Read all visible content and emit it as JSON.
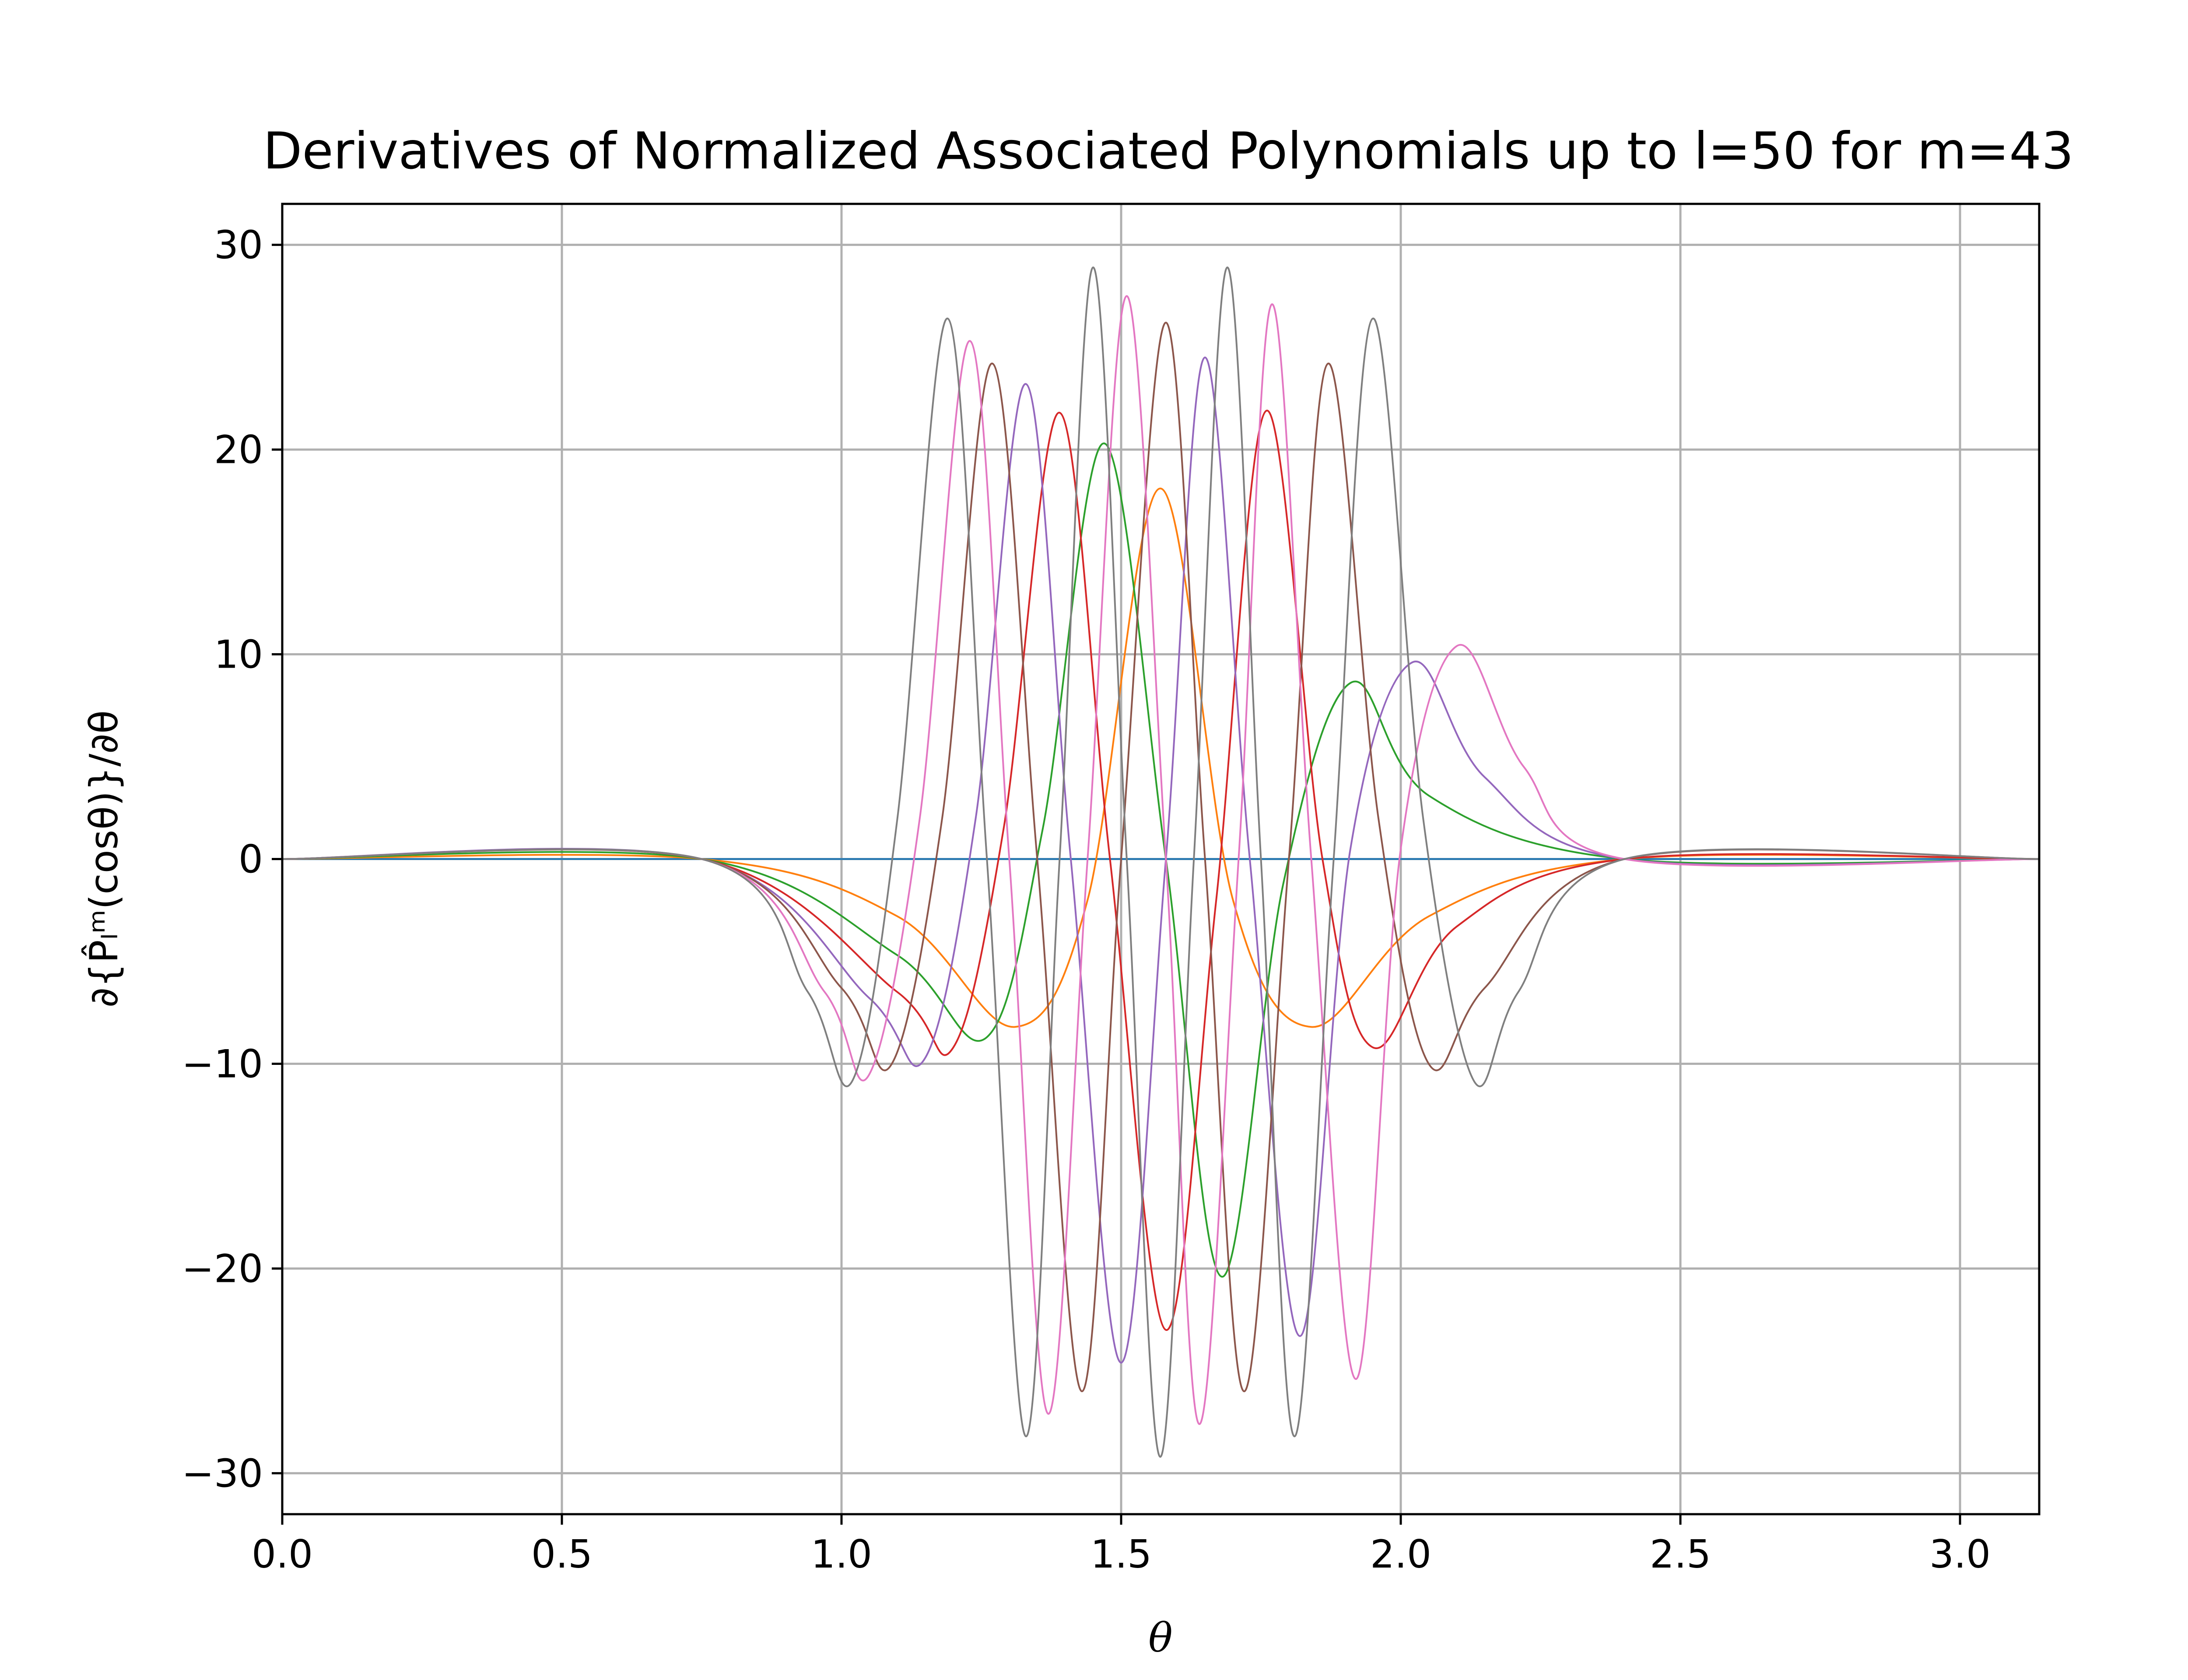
{
  "chart_data": {
    "type": "line",
    "title": "Derivatives of Normalized Associated Polynomials up to l=50 for m=43",
    "xlabel": "θ",
    "ylabel": "∂{P̂ₗᵐ(cosθ)}/∂θ",
    "xlim": [
      0,
      3.1416
    ],
    "ylim": [
      -32,
      32
    ],
    "xticks": [
      "0.0",
      "0.5",
      "1.0",
      "1.5",
      "2.0",
      "2.5",
      "3.0"
    ],
    "yticks": [
      "−30",
      "−20",
      "−10",
      "0",
      "10",
      "20",
      "30"
    ],
    "grid": true,
    "legend": "none",
    "series": [
      {
        "color": "#1f77b4",
        "l": 43,
        "points": [
          [
            0,
            0
          ],
          [
            3.1416,
            0
          ]
        ]
      },
      {
        "color": "#ff7f0e",
        "l": 44,
        "points": [
          [
            0.75,
            0
          ],
          [
            1.1,
            -2.8
          ],
          [
            1.31,
            -8.2
          ],
          [
            1.44,
            -2.0
          ],
          [
            1.57,
            18.1
          ],
          [
            1.7,
            -2.0
          ],
          [
            1.84,
            -8.2
          ],
          [
            2.05,
            -2.8
          ],
          [
            2.4,
            0
          ]
        ]
      },
      {
        "color": "#2ca02c",
        "l": 45,
        "points": [
          [
            0.75,
            0
          ],
          [
            1.1,
            -4.7
          ],
          [
            1.26,
            -8.7
          ],
          [
            1.36,
            1.5
          ],
          [
            1.47,
            20.3
          ],
          [
            1.58,
            0.0
          ],
          [
            1.68,
            -20.4
          ],
          [
            1.79,
            -1.2
          ],
          [
            1.91,
            8.6
          ],
          [
            2.05,
            3.1
          ],
          [
            2.4,
            0
          ]
        ]
      },
      {
        "color": "#d62728",
        "l": 46,
        "points": [
          [
            0.75,
            0
          ],
          [
            1.1,
            -6.5
          ],
          [
            1.2,
            -9.2
          ],
          [
            1.29,
            1.5
          ],
          [
            1.39,
            21.8
          ],
          [
            1.48,
            0.0
          ],
          [
            1.58,
            -23.0
          ],
          [
            1.67,
            -2.0
          ],
          [
            1.76,
            21.9
          ],
          [
            1.86,
            0.0
          ],
          [
            1.95,
            -9.2
          ],
          [
            2.1,
            -3.3
          ],
          [
            2.4,
            0
          ]
        ]
      },
      {
        "color": "#9467bd",
        "l": 47,
        "points": [
          [
            0.75,
            0
          ],
          [
            1.05,
            -6.8
          ],
          [
            1.15,
            -9.7
          ],
          [
            1.24,
            2.0
          ],
          [
            1.33,
            23.2
          ],
          [
            1.41,
            0.0
          ],
          [
            1.5,
            -24.6
          ],
          [
            1.58,
            0.0
          ],
          [
            1.65,
            24.5
          ],
          [
            1.73,
            0.0
          ],
          [
            1.82,
            -23.3
          ],
          [
            1.91,
            0.5
          ],
          [
            2.02,
            9.6
          ],
          [
            2.15,
            4.0
          ],
          [
            2.4,
            0
          ]
        ]
      },
      {
        "color": "#8c564b",
        "l": 48,
        "points": [
          [
            0.75,
            0
          ],
          [
            1.0,
            -6.3
          ],
          [
            1.09,
            -10.0
          ],
          [
            1.18,
            2.0
          ],
          [
            1.27,
            24.2
          ],
          [
            1.35,
            0.0
          ],
          [
            1.43,
            -26.0
          ],
          [
            1.5,
            0.0
          ],
          [
            1.58,
            26.2
          ],
          [
            1.65,
            0.0
          ],
          [
            1.72,
            -26.0
          ],
          [
            1.8,
            0.0
          ],
          [
            1.87,
            24.2
          ],
          [
            1.96,
            2.0
          ],
          [
            2.05,
            -10.0
          ],
          [
            2.15,
            -6.3
          ],
          [
            2.4,
            0
          ]
        ]
      },
      {
        "color": "#e377c2",
        "l": 49,
        "points": [
          [
            0.75,
            0
          ],
          [
            0.97,
            -6.5
          ],
          [
            1.05,
            -10.5
          ],
          [
            1.14,
            2.0
          ],
          [
            1.23,
            25.3
          ],
          [
            1.3,
            0.0
          ],
          [
            1.37,
            -27.1
          ],
          [
            1.44,
            0.0
          ],
          [
            1.51,
            27.5
          ],
          [
            1.58,
            0.0
          ],
          [
            1.64,
            -27.6
          ],
          [
            1.71,
            0.0
          ],
          [
            1.77,
            27.1
          ],
          [
            1.84,
            0.0
          ],
          [
            1.92,
            -25.4
          ],
          [
            2.0,
            0.5
          ],
          [
            2.1,
            10.4
          ],
          [
            2.22,
            4.5
          ],
          [
            2.4,
            0
          ]
        ]
      },
      {
        "color": "#7f7f7f",
        "l": 50,
        "points": [
          [
            0.75,
            0
          ],
          [
            0.94,
            -6.5
          ],
          [
            1.02,
            -10.8
          ],
          [
            1.1,
            2.0
          ],
          [
            1.19,
            26.4
          ],
          [
            1.26,
            0.0
          ],
          [
            1.33,
            -28.2
          ],
          [
            1.39,
            0.0
          ],
          [
            1.45,
            28.9
          ],
          [
            1.51,
            0.0
          ],
          [
            1.57,
            -29.2
          ],
          [
            1.63,
            0.0
          ],
          [
            1.69,
            28.9
          ],
          [
            1.75,
            0.0
          ],
          [
            1.81,
            -28.2
          ],
          [
            1.88,
            0.0
          ],
          [
            1.95,
            26.4
          ],
          [
            2.04,
            2.0
          ],
          [
            2.13,
            -10.8
          ],
          [
            2.21,
            -6.5
          ],
          [
            2.4,
            0
          ]
        ]
      }
    ]
  }
}
